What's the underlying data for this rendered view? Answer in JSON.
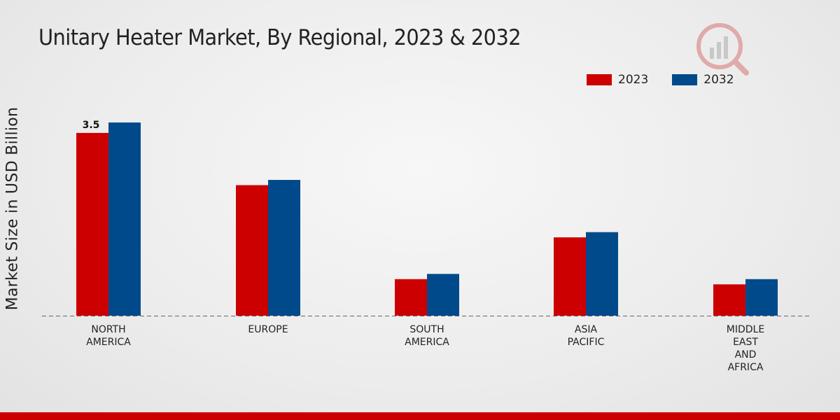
{
  "title": "Unitary Heater Market, By Regional, 2023 & 2032",
  "colors": {
    "series_2023": "#cc0000",
    "series_2032": "#004a8c",
    "footer": "#cc0000"
  },
  "chart_data": {
    "type": "bar",
    "title": "Unitary Heater Market, By Regional, 2023 & 2032",
    "xlabel": "",
    "ylabel": "Market Size in USD Billion",
    "ylim": [
      0,
      5
    ],
    "categories": [
      [
        "NORTH",
        "AMERICA"
      ],
      [
        "EUROPE"
      ],
      [
        "SOUTH",
        "AMERICA"
      ],
      [
        "ASIA",
        "PACIFIC"
      ],
      [
        "MIDDLE",
        "EAST",
        "AND",
        "AFRICA"
      ]
    ],
    "series": [
      {
        "name": "2023",
        "values": [
          3.5,
          2.5,
          0.7,
          1.5,
          0.6
        ]
      },
      {
        "name": "2032",
        "values": [
          3.7,
          2.6,
          0.8,
          1.6,
          0.7
        ]
      }
    ],
    "data_labels": [
      {
        "series": 0,
        "index": 0,
        "text": "3.5"
      }
    ],
    "legend_position": "top-right",
    "grid": false
  }
}
